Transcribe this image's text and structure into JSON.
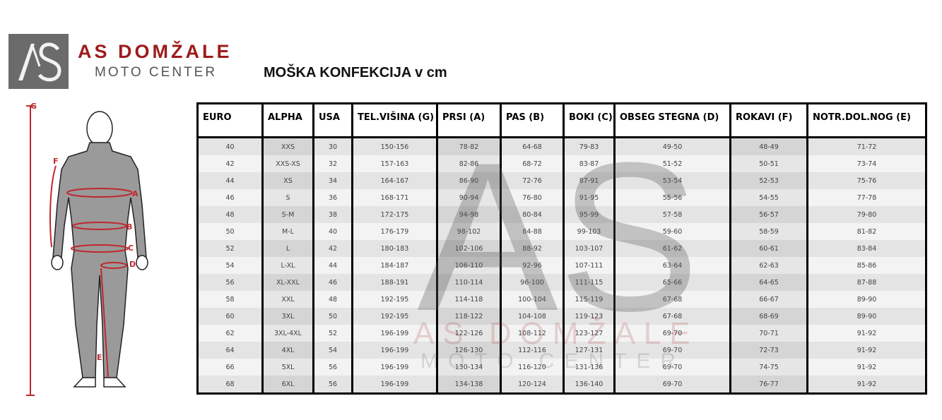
{
  "logo": {
    "mark": "AS",
    "name": "AS DOMŽALE",
    "subtitle": "MOTO CENTER"
  },
  "title": "MOŠKA KONFEKCIJA v cm",
  "figure_labels": {
    "g": "G",
    "f": "F",
    "a": "A",
    "b": "B",
    "c": "C",
    "d": "D",
    "e": "E"
  },
  "colors": {
    "brand_red": "#9e1b1b",
    "logo_gray": "#6b6b6b",
    "measure_red": "#c0282d"
  },
  "table": {
    "headers": [
      "EURO",
      "ALPHA",
      "USA",
      "TEL.VIŠINA (G)",
      "PRSI (A)",
      "PAS (B)",
      "BOKI (C)",
      "OBSEG STEGNA (D)",
      "ROKAVI (F)",
      "NOTR.DOL.NOG (E)"
    ],
    "rows": [
      [
        "40",
        "XXS",
        "30",
        "150-156",
        "78-82",
        "64-68",
        "79-83",
        "49-50",
        "48-49",
        "71-72"
      ],
      [
        "42",
        "XXS-XS",
        "32",
        "157-163",
        "82-86",
        "68-72",
        "83-87",
        "51-52",
        "50-51",
        "73-74"
      ],
      [
        "44",
        "XS",
        "34",
        "164-167",
        "86-90",
        "72-76",
        "87-91",
        "53-54",
        "52-53",
        "75-76"
      ],
      [
        "46",
        "S",
        "36",
        "168-171",
        "90-94",
        "76-80",
        "91-95",
        "55-56",
        "54-55",
        "77-78"
      ],
      [
        "48",
        "S-M",
        "38",
        "172-175",
        "94-98",
        "80-84",
        "95-99",
        "57-58",
        "56-57",
        "79-80"
      ],
      [
        "50",
        "M-L",
        "40",
        "176-179",
        "98-102",
        "84-88",
        "99-103",
        "59-60",
        "58-59",
        "81-82"
      ],
      [
        "52",
        "L",
        "42",
        "180-183",
        "102-106",
        "88-92",
        "103-107",
        "61-62",
        "60-61",
        "83-84"
      ],
      [
        "54",
        "L-XL",
        "44",
        "184-187",
        "106-110",
        "92-96",
        "107-111",
        "63-64",
        "62-63",
        "85-86"
      ],
      [
        "56",
        "XL-XXL",
        "46",
        "188-191",
        "110-114",
        "96-100",
        "111-115",
        "65-66",
        "64-65",
        "87-88"
      ],
      [
        "58",
        "XXL",
        "48",
        "192-195",
        "114-118",
        "100-104",
        "115-119",
        "67-68",
        "66-67",
        "89-90"
      ],
      [
        "60",
        "3XL",
        "50",
        "192-195",
        "118-122",
        "104-108",
        "119-123",
        "67-68",
        "68-69",
        "89-90"
      ],
      [
        "62",
        "3XL-4XL",
        "52",
        "196-199",
        "122-126",
        "108-112",
        "123-127",
        "69-70",
        "70-71",
        "91-92"
      ],
      [
        "64",
        "4XL",
        "54",
        "196-199",
        "126-130",
        "112-116",
        "127-131",
        "69-70",
        "72-73",
        "91-92"
      ],
      [
        "66",
        "5XL",
        "56",
        "196-199",
        "130-134",
        "116-120",
        "131-136",
        "69-70",
        "74-75",
        "91-92"
      ],
      [
        "68",
        "6XL",
        "56",
        "196-199",
        "134-138",
        "120-124",
        "136-140",
        "69-70",
        "76-77",
        "91-92"
      ]
    ]
  }
}
